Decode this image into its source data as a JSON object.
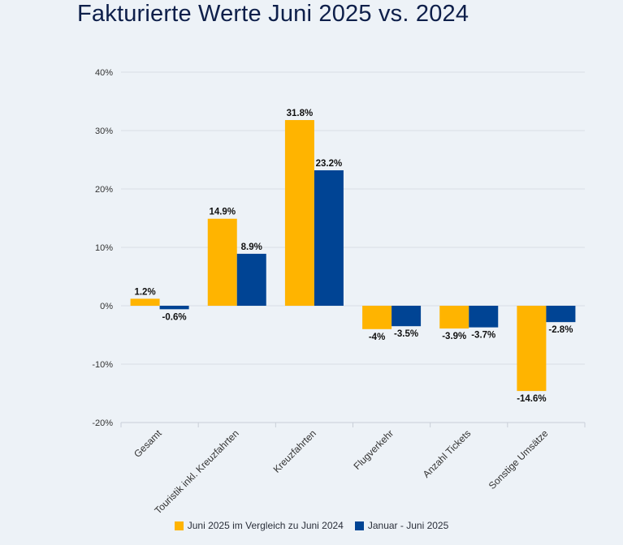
{
  "colors": {
    "series1": "#ffb400",
    "series2": "#004494",
    "grid": "#d9dee5",
    "axis_text": "#333333",
    "label_text": "#111111"
  },
  "chart_data": {
    "type": "bar",
    "title": "Fakturierte Werte Juni 2025 vs. 2024",
    "categories": [
      "Gesamt",
      "Touristik inkl. Kreuzfahrten",
      "Kreuzfahrten",
      "Flugverkehr",
      "Anzahl Tickets",
      "Sonstige Umsätze"
    ],
    "series": [
      {
        "name": "Juni 2025 im Vergleich zu Juni 2024",
        "values": [
          1.2,
          14.9,
          31.8,
          -4,
          -3.9,
          -14.6
        ]
      },
      {
        "name": "Januar - Juni 2025",
        "values": [
          -0.6,
          8.9,
          23.2,
          -3.5,
          -3.7,
          -2.8
        ]
      }
    ],
    "data_labels": [
      [
        "1.2%",
        "14.9%",
        "31.8%",
        "-4%",
        "-3.9%",
        "-14.6%"
      ],
      [
        "-0.6%",
        "8.9%",
        "23.2%",
        "-3.5%",
        "-3.7%",
        "-2.8%"
      ]
    ],
    "yticks": [
      40,
      30,
      20,
      10,
      0,
      -10,
      -20
    ],
    "ytick_labels": [
      "40%",
      "30%",
      "20%",
      "10%",
      "0%",
      "-10%",
      "-20%"
    ],
    "ylim": [
      -20,
      40
    ],
    "grid": true,
    "legend_position": "bottom"
  }
}
